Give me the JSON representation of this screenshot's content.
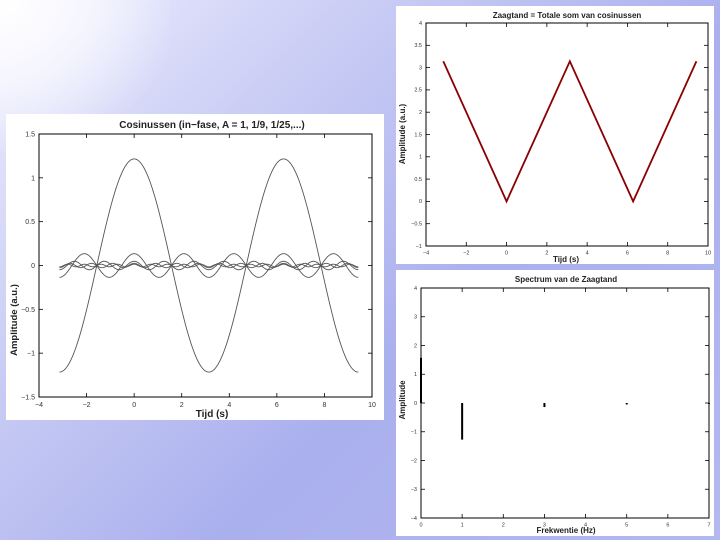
{
  "chart_data": [
    {
      "type": "line",
      "title": "Cosinussen (in−fase, A = 1, 1/9, 1/25,...)",
      "xlabel": "Tijd (s)",
      "ylabel": "Amplitude (a.u.)",
      "xlim": [
        -4,
        10
      ],
      "ylim": [
        -1.5,
        1.5
      ],
      "xticks": [
        "−4",
        "−2",
        "0",
        "2",
        "4",
        "6",
        "8",
        "10"
      ],
      "yticks": [
        "1.5",
        "1",
        "0.5",
        "0",
        "−0.5",
        "−1",
        "−1.5"
      ],
      "x_range": [
        -3.1416,
        9.4248
      ],
      "series": [
        {
          "amplitude": 1.2159,
          "frequency": 1
        },
        {
          "amplitude": 0.1351,
          "frequency": 3
        },
        {
          "amplitude": 0.0486,
          "frequency": 5
        },
        {
          "amplitude": 0.0248,
          "frequency": 7
        },
        {
          "amplitude": 0.015,
          "frequency": 9
        }
      ],
      "grid": false,
      "color": "#555555"
    },
    {
      "type": "line",
      "title": "Zaagtand = Totale som van cosinussen",
      "xlabel": "Tijd (s)",
      "ylabel": "Amplitude (a.u.)",
      "xlim": [
        -4,
        10
      ],
      "ylim": [
        -1,
        4
      ],
      "xticks": [
        "−4",
        "−2",
        "0",
        "2",
        "4",
        "6",
        "8",
        "10"
      ],
      "yticks": [
        "4",
        "3.5",
        "3",
        "2.5",
        "2",
        "1.5",
        "1",
        "0.5",
        "0",
        "−0.5",
        "−1"
      ],
      "x": [
        -3.1416,
        0,
        3.1416,
        6.2832,
        9.4248
      ],
      "y": [
        3.1416,
        0,
        3.1416,
        0,
        3.1416
      ],
      "grid": false,
      "color": "#8b0000"
    },
    {
      "type": "bar",
      "title": "Spectrum van de Zaagtand",
      "xlabel": "Frekwentie (Hz)",
      "ylabel": "Amplitude",
      "xlim": [
        0,
        7
      ],
      "ylim": [
        -4,
        4
      ],
      "xticks": [
        "0",
        "1",
        "2",
        "3",
        "4",
        "5",
        "6",
        "7"
      ],
      "yticks": [
        "4",
        "3",
        "2",
        "1",
        "0",
        "−1",
        "−2",
        "−3",
        "−4"
      ],
      "x": [
        0,
        1,
        3,
        5,
        7
      ],
      "values": [
        1.5708,
        -1.2732,
        -0.1415,
        -0.0509,
        -0.026
      ],
      "grid": false,
      "color": "#000000"
    }
  ]
}
